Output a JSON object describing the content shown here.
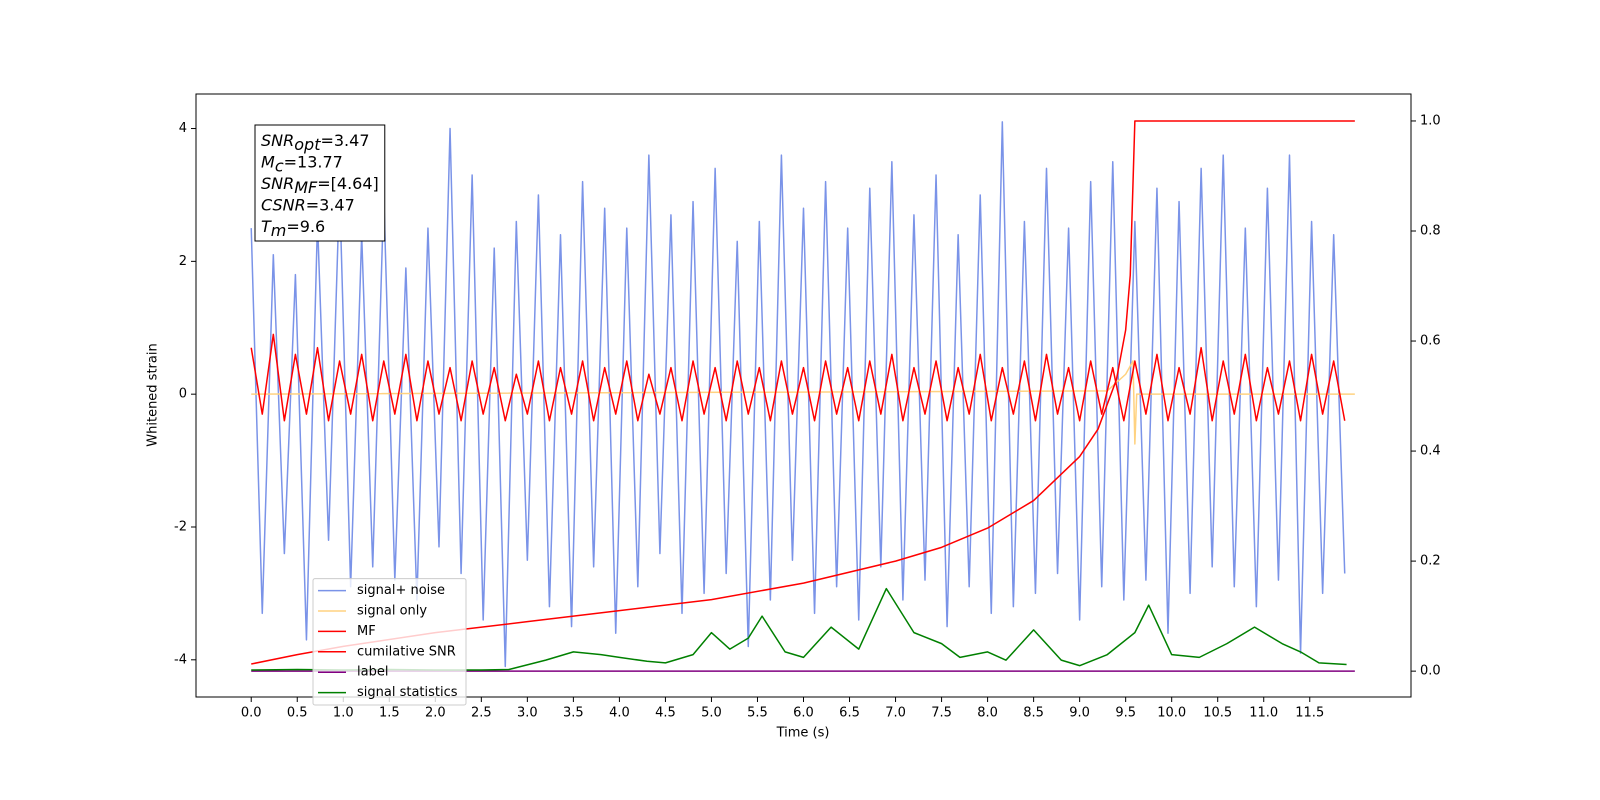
{
  "chart_data": {
    "type": "line",
    "xlabel": "Time (s)",
    "ylabel": "Whitened strain",
    "xlim": [
      -0.6,
      12.6
    ],
    "ylim": [
      -4.56,
      4.52
    ],
    "y2lim": [
      -0.047,
      1.049
    ],
    "xticks": [
      {
        "value": 0,
        "label": "0.0"
      },
      0.5,
      {
        "value": 1,
        "label": "1.0"
      },
      1.5,
      {
        "value": 2,
        "label": "2.0"
      },
      2.5,
      {
        "value": 3,
        "label": "3.0"
      },
      3.5,
      {
        "value": 4,
        "label": "4.0"
      },
      4.5,
      {
        "value": 5,
        "label": "5.0"
      },
      5.5,
      {
        "value": 6,
        "label": "6.0"
      },
      6.5,
      {
        "value": 7,
        "label": "7.0"
      },
      7.5,
      {
        "value": 8,
        "label": "8.0"
      },
      8.5,
      {
        "value": 9,
        "label": "9.0"
      },
      9.5,
      {
        "value": 10,
        "label": "10.0"
      },
      10.5,
      {
        "value": 11,
        "label": "11.0"
      },
      11.5
    ],
    "yticks": [
      4,
      2,
      0,
      -2,
      -4
    ],
    "y2ticks": [
      {
        "value": 0,
        "label": "0.0"
      },
      0.2,
      0.4,
      0.6,
      0.8,
      {
        "value": 1,
        "label": "1.0"
      }
    ],
    "legend": "lower left",
    "annotation": [
      {
        "main": "SNR",
        "sub": "opt",
        "rest": "=3.47"
      },
      {
        "main": "M",
        "sub": "c",
        "rest": "=13.77"
      },
      {
        "main": "SNR",
        "sub": "MF",
        "rest": "=[4.64]"
      },
      {
        "main": "CSNR",
        "rest": "=3.47"
      },
      {
        "main": "T",
        "sub": "m",
        "rest": "=9.6"
      }
    ],
    "x": [
      0,
      0.12,
      0.24,
      0.36,
      0.48,
      0.6,
      0.72,
      0.84,
      0.96,
      1.08,
      1.2,
      1.32,
      1.44,
      1.56,
      1.68,
      1.8,
      1.92,
      2.04,
      2.16,
      2.28,
      2.4,
      2.52,
      2.64,
      2.76,
      2.88,
      3,
      3.12,
      3.24,
      3.36,
      3.48,
      3.6,
      3.72,
      3.84,
      3.96,
      4.08,
      4.2,
      4.32,
      4.44,
      4.56,
      4.68,
      4.8,
      4.92,
      5.04,
      5.16,
      5.28,
      5.4,
      5.52,
      5.64,
      5.76,
      5.88,
      6,
      6.12,
      6.24,
      6.36,
      6.48,
      6.6,
      6.72,
      6.84,
      6.96,
      7.08,
      7.2,
      7.32,
      7.44,
      7.56,
      7.68,
      7.8,
      7.92,
      8.04,
      8.16,
      8.28,
      8.4,
      8.52,
      8.64,
      8.76,
      8.88,
      9,
      9.12,
      9.24,
      9.36,
      9.48,
      9.6,
      9.72,
      9.84,
      9.96,
      10.08,
      10.2,
      10.32,
      10.44,
      10.56,
      10.68,
      10.8,
      10.92,
      11.04,
      11.16,
      11.28,
      11.4,
      11.52,
      11.64,
      11.76,
      11.88
    ],
    "series": [
      {
        "name": "signal+ noise",
        "color": "#7a93e8",
        "values": [
          2.5,
          -3.3,
          2.1,
          -2.4,
          1.8,
          -3.7,
          2.6,
          -2.2,
          3.1,
          -2.9,
          2.4,
          -2.6,
          3.0,
          -2.8,
          1.9,
          -3.1,
          2.5,
          -2.3,
          4.0,
          -2.7,
          3.3,
          -3.4,
          2.2,
          -4.1,
          2.6,
          -2.5,
          3.0,
          -3.2,
          2.4,
          -3.5,
          3.2,
          -2.6,
          2.8,
          -3.6,
          2.5,
          -2.9,
          3.6,
          -2.4,
          2.7,
          -3.3,
          2.9,
          -3.0,
          3.4,
          -2.7,
          2.3,
          -3.8,
          2.6,
          -3.1,
          3.6,
          -2.5,
          2.8,
          -3.3,
          3.2,
          -2.9,
          2.5,
          -3.4,
          3.1,
          -2.6,
          3.5,
          -3.1,
          2.7,
          -2.8,
          3.3,
          -3.5,
          2.4,
          -2.9,
          3.0,
          -3.3,
          4.1,
          -3.2,
          2.6,
          -3.0,
          3.4,
          -2.7,
          2.5,
          -3.4,
          3.2,
          -2.9,
          3.5,
          -3.1,
          2.6,
          -2.8,
          3.1,
          -3.6,
          2.9,
          -3.0,
          3.4,
          -2.6,
          3.6,
          -2.9,
          2.5,
          -3.2,
          3.1,
          -2.8,
          3.6,
          -3.9,
          2.6,
          -3.0,
          2.4,
          -2.7
        ]
      },
      {
        "name": "signal only",
        "color": "#ffd280",
        "x": [
          0,
          9.3,
          9.5,
          9.58,
          9.6,
          9.62,
          11.99
        ],
        "values": [
          0,
          0.05,
          0.3,
          0.5,
          -0.75,
          0,
          0
        ]
      },
      {
        "name": "MF",
        "color": "#ff0000",
        "values": [
          0.7,
          -0.3,
          0.9,
          -0.4,
          0.6,
          -0.3,
          0.7,
          -0.4,
          0.5,
          -0.3,
          0.6,
          -0.4,
          0.5,
          -0.3,
          0.6,
          -0.4,
          0.5,
          -0.3,
          0.4,
          -0.4,
          0.5,
          -0.3,
          0.4,
          -0.4,
          0.3,
          -0.3,
          0.5,
          -0.4,
          0.4,
          -0.3,
          0.5,
          -0.4,
          0.4,
          -0.3,
          0.5,
          -0.4,
          0.3,
          -0.3,
          0.4,
          -0.4,
          0.5,
          -0.3,
          0.4,
          -0.4,
          0.5,
          -0.3,
          0.4,
          -0.4,
          0.5,
          -0.3,
          0.4,
          -0.4,
          0.5,
          -0.3,
          0.4,
          -0.4,
          0.5,
          -0.3,
          0.6,
          -0.4,
          0.4,
          -0.3,
          0.5,
          -0.4,
          0.4,
          -0.3,
          0.6,
          -0.4,
          0.4,
          -0.3,
          0.5,
          -0.4,
          0.6,
          -0.3,
          0.4,
          -0.4,
          0.5,
          -0.3,
          0.4,
          -0.4,
          0.5,
          -0.3,
          0.6,
          -0.4,
          0.4,
          -0.3,
          0.7,
          -0.4,
          0.5,
          -0.3,
          0.6,
          -0.4,
          0.4,
          -0.3,
          0.5,
          -0.4,
          0.6,
          -0.3,
          0.5,
          -0.4
        ]
      },
      {
        "name": "cumilative SNR",
        "color": "#ff0000",
        "axis": "y2",
        "x": [
          0,
          0.5,
          1,
          2,
          3,
          4,
          5,
          6,
          7,
          7.5,
          8,
          8.5,
          9,
          9.2,
          9.4,
          9.5,
          9.55,
          9.6,
          11.99
        ],
        "values": [
          0.013,
          0.03,
          0.045,
          0.07,
          0.09,
          0.11,
          0.13,
          0.16,
          0.2,
          0.225,
          0.26,
          0.31,
          0.39,
          0.44,
          0.53,
          0.62,
          0.72,
          1.0,
          1.0
        ]
      },
      {
        "name": "label",
        "color": "#800080",
        "axis": "y2",
        "x": [
          0,
          11.99
        ],
        "values": [
          0,
          0
        ]
      },
      {
        "name": "signal statistics",
        "color": "#008000",
        "axis": "y2",
        "x": [
          0,
          0.5,
          1,
          1.5,
          2,
          2.5,
          2.8,
          3.2,
          3.5,
          3.8,
          4.0,
          4.3,
          4.5,
          4.8,
          5.0,
          5.2,
          5.4,
          5.55,
          5.8,
          6.0,
          6.3,
          6.6,
          6.9,
          7.2,
          7.5,
          7.7,
          8.0,
          8.2,
          8.5,
          8.8,
          9.0,
          9.3,
          9.6,
          9.75,
          10.0,
          10.3,
          10.6,
          10.9,
          11.2,
          11.4,
          11.6,
          11.9
        ],
        "values": [
          0.002,
          0.003,
          0.002,
          0.003,
          0.002,
          0.002,
          0.003,
          0.02,
          0.035,
          0.03,
          0.025,
          0.018,
          0.015,
          0.03,
          0.07,
          0.04,
          0.06,
          0.1,
          0.035,
          0.025,
          0.08,
          0.04,
          0.15,
          0.07,
          0.05,
          0.025,
          0.035,
          0.02,
          0.075,
          0.02,
          0.01,
          0.03,
          0.07,
          0.12,
          0.03,
          0.025,
          0.05,
          0.08,
          0.05,
          0.035,
          0.015,
          0.012
        ]
      }
    ]
  }
}
